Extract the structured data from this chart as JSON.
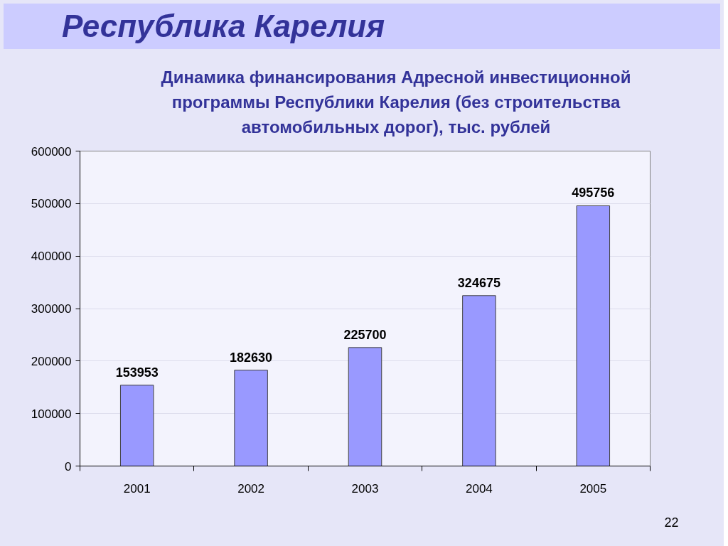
{
  "chart_data": {
    "type": "bar",
    "title": "Республика Карелия",
    "subtitle": "Динамика финансирования Адресной инвестиционной программы Республики Карелия (без строительства автомобильных дорог), тыс. рублей",
    "categories": [
      "2001",
      "2002",
      "2003",
      "2004",
      "2005"
    ],
    "values": [
      153953,
      182630,
      225700,
      324675,
      495756
    ],
    "color": "#9999ff",
    "ylim": [
      0,
      600000
    ],
    "yticks": [
      0,
      100000,
      200000,
      300000,
      400000,
      500000,
      600000
    ],
    "grid": "y",
    "data_labels": true,
    "annotations": [
      "22"
    ]
  }
}
